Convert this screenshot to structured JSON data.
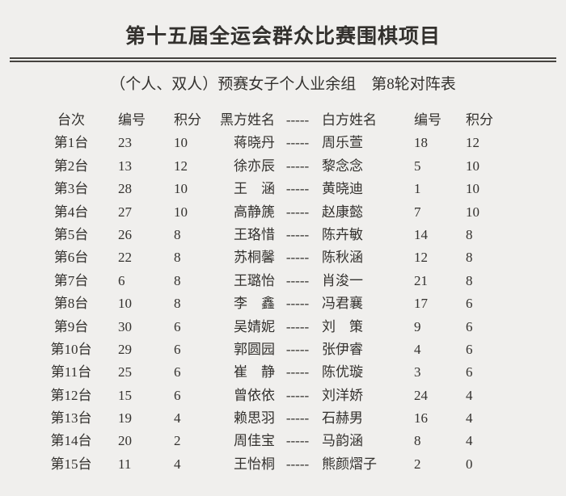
{
  "page": {
    "title": "第十五届全运会群众比赛围棋项目",
    "subtitle": "（个人、双人）预赛女子个人业余组　第8轮对阵表"
  },
  "table": {
    "headers": {
      "board": "台次",
      "black_number": "编号",
      "black_score": "积分",
      "black_name": "黑方姓名",
      "white_name": "白方姓名",
      "white_number": "编号",
      "white_score": "积分"
    },
    "separator": "-----",
    "rows": [
      {
        "board": "第1台",
        "black_number": "23",
        "black_score": "10",
        "black_name": "蒋晓丹",
        "white_name": "周乐萱",
        "white_number": "18",
        "white_score": "12"
      },
      {
        "board": "第2台",
        "black_number": "13",
        "black_score": "12",
        "black_name": "徐亦辰",
        "white_name": "黎念念",
        "white_number": "5",
        "white_score": "10"
      },
      {
        "board": "第3台",
        "black_number": "28",
        "black_score": "10",
        "black_name": "王　涵",
        "white_name": "黄晓迪",
        "white_number": "1",
        "white_score": "10"
      },
      {
        "board": "第4台",
        "black_number": "27",
        "black_score": "10",
        "black_name": "高静篪",
        "white_name": "赵康懿",
        "white_number": "7",
        "white_score": "10"
      },
      {
        "board": "第5台",
        "black_number": "26",
        "black_score": "8",
        "black_name": "王珞惜",
        "white_name": "陈卉敏",
        "white_number": "14",
        "white_score": "8"
      },
      {
        "board": "第6台",
        "black_number": "22",
        "black_score": "8",
        "black_name": "苏桐馨",
        "white_name": "陈秋涵",
        "white_number": "12",
        "white_score": "8"
      },
      {
        "board": "第7台",
        "black_number": "6",
        "black_score": "8",
        "black_name": "王璐怡",
        "white_name": "肖浚一",
        "white_number": "21",
        "white_score": "8"
      },
      {
        "board": "第8台",
        "black_number": "10",
        "black_score": "8",
        "black_name": "李　鑫",
        "white_name": "冯君襄",
        "white_number": "17",
        "white_score": "6"
      },
      {
        "board": "第9台",
        "black_number": "30",
        "black_score": "6",
        "black_name": "吴婧妮",
        "white_name": "刘　策",
        "white_number": "9",
        "white_score": "6"
      },
      {
        "board": "第10台",
        "black_number": "29",
        "black_score": "6",
        "black_name": "郭圆园",
        "white_name": "张伊睿",
        "white_number": "4",
        "white_score": "6"
      },
      {
        "board": "第11台",
        "black_number": "25",
        "black_score": "6",
        "black_name": "崔　静",
        "white_name": "陈优璇",
        "white_number": "3",
        "white_score": "6"
      },
      {
        "board": "第12台",
        "black_number": "15",
        "black_score": "6",
        "black_name": "曾依依",
        "white_name": "刘洋娇",
        "white_number": "24",
        "white_score": "4"
      },
      {
        "board": "第13台",
        "black_number": "19",
        "black_score": "4",
        "black_name": "赖思羽",
        "white_name": "石赫男",
        "white_number": "16",
        "white_score": "4"
      },
      {
        "board": "第14台",
        "black_number": "20",
        "black_score": "2",
        "black_name": "周佳宝",
        "white_name": "马韵涵",
        "white_number": "8",
        "white_score": "4"
      },
      {
        "board": "第15台",
        "black_number": "11",
        "black_score": "4",
        "black_name": "王怡桐",
        "white_name": "熊颜熠子",
        "white_number": "2",
        "white_score": "0"
      }
    ]
  },
  "colors": {
    "background": "#f0efed",
    "text": "#33312e",
    "rule": "#45433f"
  }
}
